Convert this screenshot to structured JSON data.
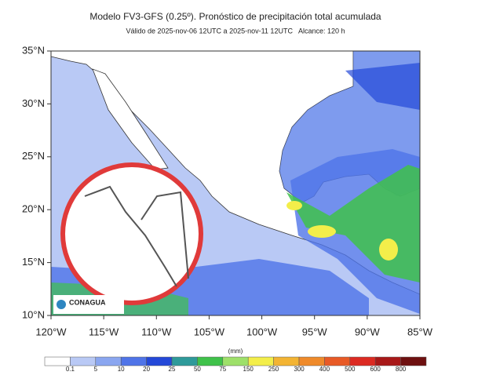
{
  "header": {
    "title": "Modelo FV3-GFS (0.25º). Pronóstico de precipitación total acumulada",
    "subtitle": "Válido de 2025-nov-06 12UTC a 2025-nov-11 12UTC   Alcance: 120 h"
  },
  "axes": {
    "lat_labels": [
      "35°N",
      "30°N",
      "25°N",
      "20°N",
      "15°N",
      "10°N"
    ],
    "lon_labels": [
      "120°W",
      "115°W",
      "110°W",
      "105°W",
      "100°W",
      "95°W",
      "90°W",
      "85°W"
    ]
  },
  "legend": {
    "unit": "(mm)",
    "labels": [
      "0.1",
      "5",
      "10",
      "20",
      "25",
      "50",
      "75",
      "150",
      "250",
      "300",
      "400",
      "500",
      "600",
      "800"
    ],
    "colors": [
      "#ffffff",
      "#b9c9f5",
      "#8aa6f0",
      "#4f74e8",
      "#2448d8",
      "#2e9a9a",
      "#3fc24a",
      "#9ee06a",
      "#f3ee4a",
      "#f3b433",
      "#ef8a2a",
      "#e85a26",
      "#dc2a22",
      "#a81818",
      "#6e1010"
    ]
  },
  "logo": {
    "text": "CONAGUA"
  }
}
